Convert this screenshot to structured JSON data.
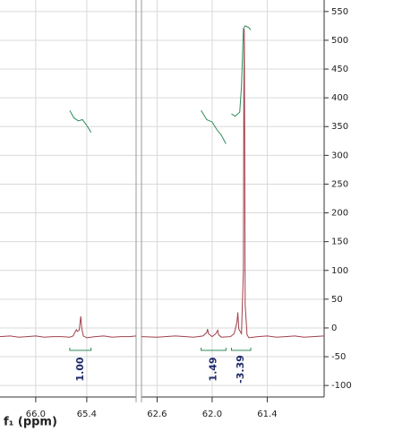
{
  "chart_data": {
    "type": "line",
    "x_label": "f₁ (ppm)",
    "segments": [
      {
        "xlim": [
          66.42,
          64.82
        ],
        "xticks": [
          {
            "value": 66,
            "label": "66.0"
          },
          65.4
        ]
      },
      {
        "xlim": [
          62.77,
          60.78
        ],
        "xticks": [
          62.6,
          {
            "value": 62,
            "label": "62.0"
          },
          61.4
        ]
      }
    ],
    "ylim": [
      -120,
      570
    ],
    "yticks": [
      -100,
      -50,
      0,
      50,
      100,
      150,
      200,
      250,
      300,
      350,
      400,
      450,
      500,
      550
    ],
    "grid": true,
    "series": [
      {
        "color": "#a0404a",
        "x": [
          66.42,
          66.3,
          66.2,
          66.1,
          66.0,
          65.9,
          65.8,
          65.7,
          65.6,
          65.56,
          65.53,
          65.52,
          65.51,
          65.49,
          65.48,
          65.47,
          65.46,
          65.44,
          65.4,
          65.3,
          65.2,
          65.1,
          65.0,
          64.9,
          64.82,
          null,
          62.77,
          62.6,
          62.4,
          62.2,
          62.1,
          62.06,
          62.05,
          62.04,
          62.0,
          61.96,
          61.94,
          61.93,
          61.9,
          61.8,
          61.76,
          61.73,
          61.72,
          61.71,
          61.68,
          61.66,
          61.655,
          61.65,
          61.645,
          61.64,
          61.62,
          61.6,
          61.5,
          61.4,
          61.3,
          61.2,
          61.1,
          61.0,
          60.9,
          60.78
        ],
        "values": [
          -15,
          -14,
          -16,
          -15,
          -14,
          -16,
          -15,
          -15,
          -16,
          -14,
          -5,
          -3,
          -6,
          -4,
          8,
          20,
          0,
          -14,
          -17,
          -15,
          -14,
          -16,
          -15,
          -15,
          -14,
          null,
          -15,
          -16,
          -14,
          -16,
          -14,
          -8,
          -2,
          -10,
          -15,
          -10,
          -4,
          -12,
          -16,
          -15,
          -10,
          10,
          27,
          -2,
          -10,
          100,
          400,
          520,
          300,
          40,
          -12,
          -17,
          -15,
          -14,
          -16,
          -15,
          -14,
          -16,
          -15,
          -14
        ]
      }
    ],
    "integrals": {
      "color": "#2e8b57",
      "label_color": "#1f2a6b",
      "ranges": [
        [
          65.6,
          65.35
        ],
        [
          62.12,
          61.85
        ],
        [
          61.79,
          61.58
        ]
      ],
      "values": [
        1,
        1.49,
        -3.39
      ],
      "value_labels": [
        "1.00",
        "1.49",
        "-3.39"
      ],
      "curves": [
        {
          "x": [
            65.6,
            65.55,
            65.5,
            65.45,
            65.4,
            65.35
          ],
          "values": [
            378,
            365,
            360,
            362,
            352,
            340
          ]
        },
        {
          "x": [
            62.12,
            62.06,
            62.0,
            61.95,
            61.9,
            61.85
          ],
          "values": [
            378,
            362,
            358,
            345,
            335,
            320
          ]
        },
        {
          "x": [
            61.79,
            61.75,
            61.7,
            61.68,
            61.66,
            61.64,
            61.6,
            61.58
          ],
          "values": [
            372,
            368,
            375,
            420,
            520,
            525,
            522,
            518
          ]
        }
      ]
    }
  }
}
